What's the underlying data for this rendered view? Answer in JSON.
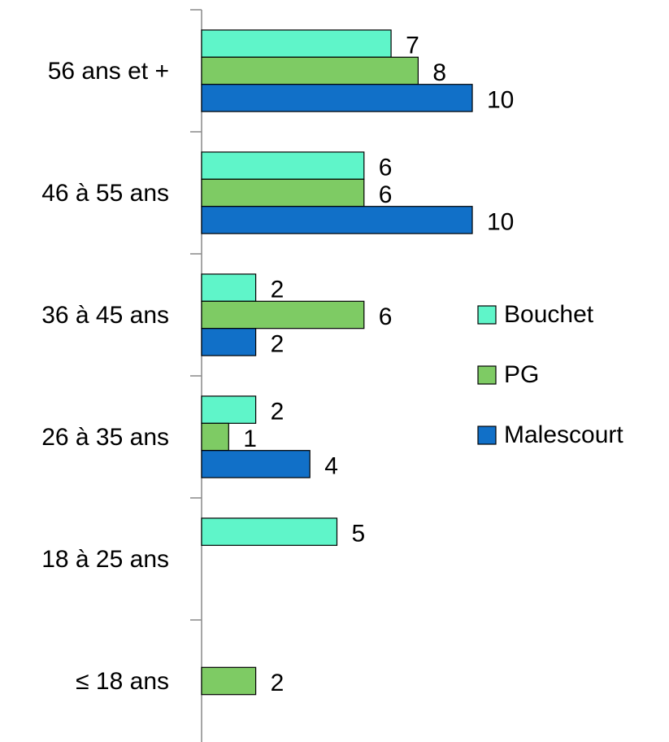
{
  "chart_data": {
    "type": "hbar",
    "categories": [
      "56 ans et +",
      "46 à 55 ans",
      "36 à 45 ans",
      "26 à 35 ans",
      "18 à 25 ans",
      "≤ 18 ans"
    ],
    "series": [
      {
        "name": "Bouchet",
        "color": "#5ff5c9",
        "values": [
          7,
          6,
          2,
          2,
          5,
          null
        ]
      },
      {
        "name": "PG",
        "color": "#7ecb64",
        "values": [
          8,
          6,
          6,
          1,
          null,
          2
        ]
      },
      {
        "name": "Malescourt",
        "color": "#1170c8",
        "values": [
          10,
          10,
          2,
          4,
          null,
          null
        ]
      }
    ],
    "xlim": [
      0,
      10
    ],
    "legend": "right"
  }
}
